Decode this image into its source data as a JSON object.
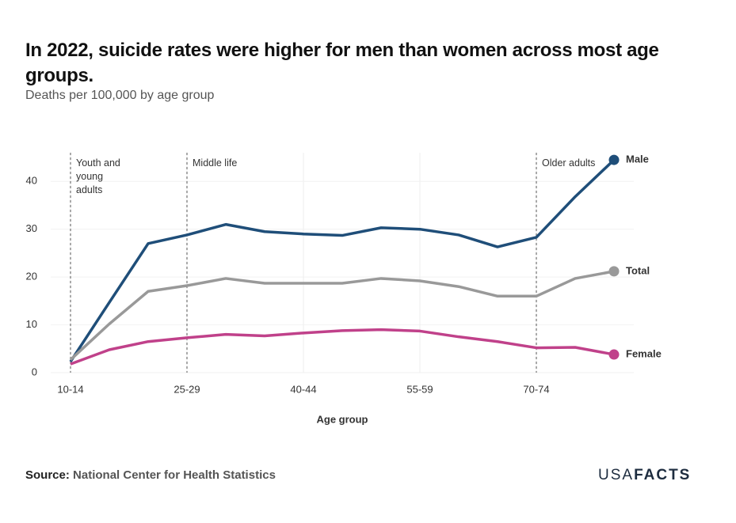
{
  "chart_data": {
    "type": "line",
    "title": "In 2022, suicide rates were higher for men than women across most age groups.",
    "subtitle": "Deaths per 100,000 by age group",
    "x_label": "Age group",
    "categories": [
      "10-14",
      null,
      null,
      "25-29",
      null,
      null,
      "40-44",
      null,
      null,
      "55-59",
      null,
      null,
      "70-74",
      null,
      null
    ],
    "series": [
      {
        "name": "Male",
        "color": "#1f4e79",
        "values": [
          2.3,
          14.7,
          27.0,
          28.8,
          31.0,
          29.5,
          29.0,
          28.7,
          30.3,
          30.0,
          28.8,
          26.3,
          28.3,
          36.8,
          44.5
        ]
      },
      {
        "name": "Total",
        "color": "#999999",
        "values": [
          2.7,
          10.2,
          17.0,
          18.2,
          19.7,
          18.7,
          18.7,
          18.7,
          19.7,
          19.2,
          18.0,
          16.0,
          16.0,
          19.7,
          21.2
        ]
      },
      {
        "name": "Female",
        "color": "#c0418a",
        "values": [
          1.8,
          4.8,
          6.5,
          7.3,
          8.0,
          7.7,
          8.3,
          8.8,
          9.0,
          8.7,
          7.5,
          6.5,
          5.2,
          5.3,
          3.8
        ]
      }
    ],
    "ylim": [
      0,
      46
    ],
    "yticks": [
      0,
      10,
      20,
      30,
      40
    ],
    "grid": true,
    "annotations": [
      "Youth and young adults",
      "Middle life",
      "Older adults"
    ],
    "source_label": "Source:",
    "source": "National Center for Health Statistics",
    "logo": [
      "USA",
      "FACTS"
    ]
  }
}
